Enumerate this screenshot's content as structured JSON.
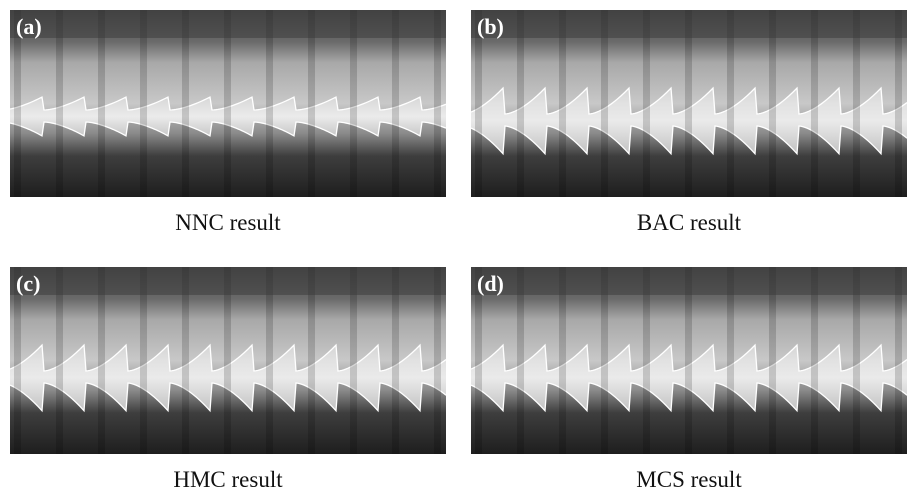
{
  "panels": [
    {
      "tag": "(a)",
      "caption": "NNC result"
    },
    {
      "tag": "(b)",
      "caption": "BAC result"
    },
    {
      "tag": "(c)",
      "caption": "HMC result"
    },
    {
      "tag": "(d)",
      "caption": "MCS result"
    }
  ]
}
